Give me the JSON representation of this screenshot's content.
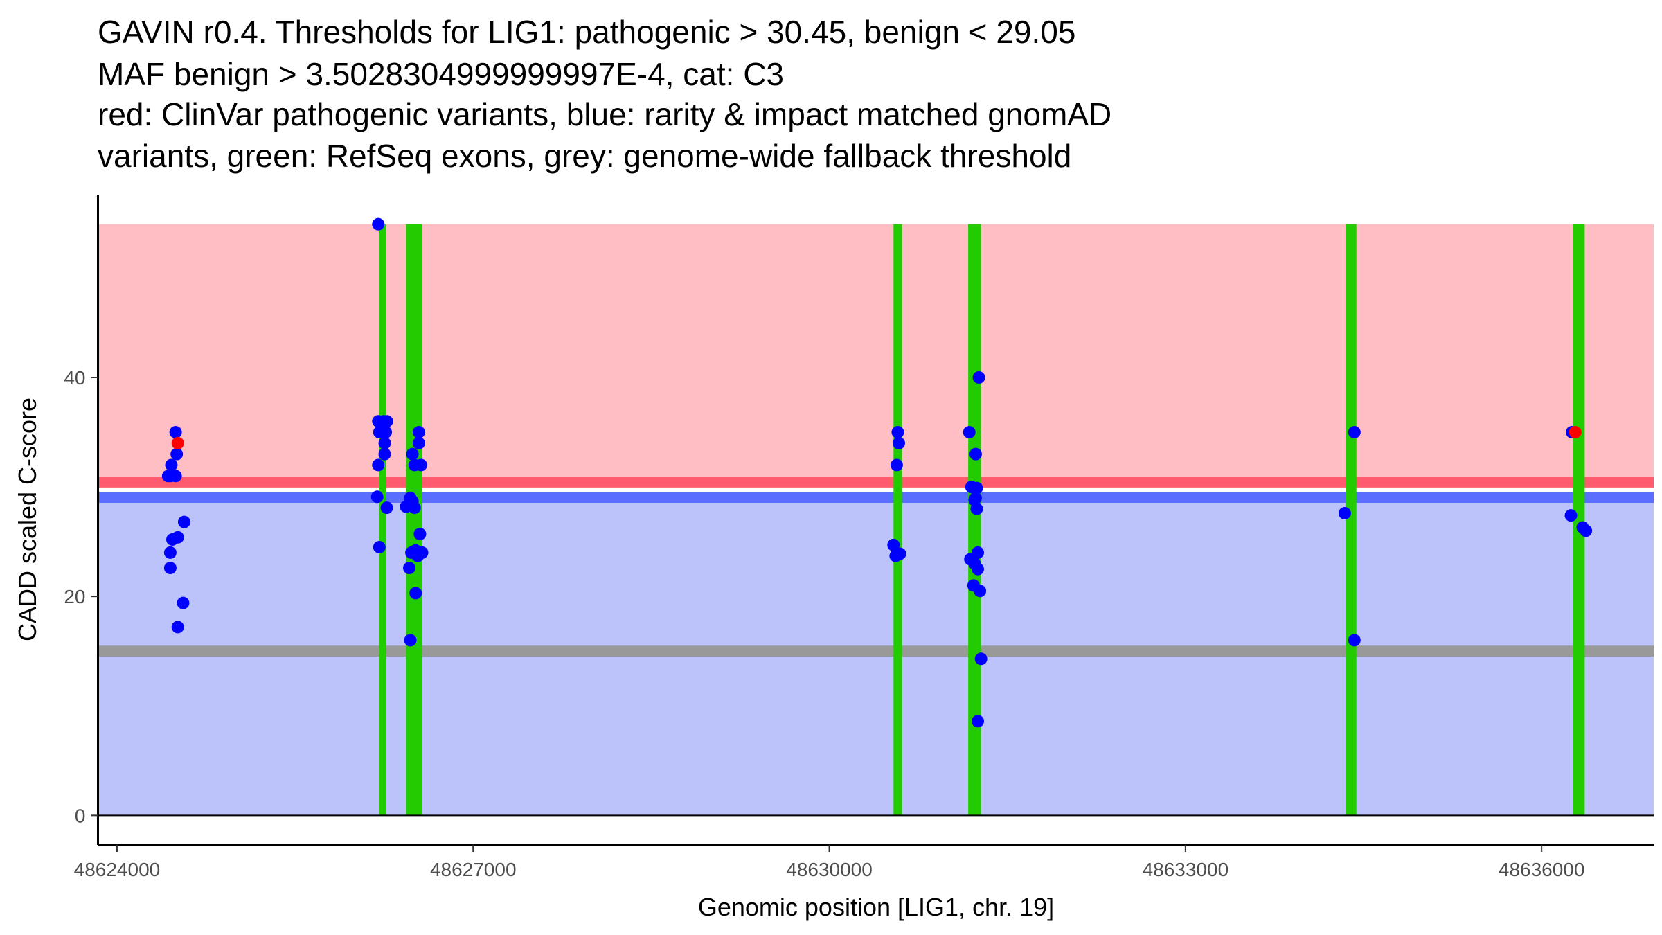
{
  "chart_data": {
    "type": "scatter",
    "title_lines": [
      "GAVIN r0.4. Thresholds for LIG1: pathogenic > 30.45, benign < 29.05",
      "MAF benign > 3.5028304999999997E-4, cat: C3",
      "red: ClinVar pathogenic variants, blue: rarity & impact matched gnomAD",
      "variants, green: RefSeq exons, grey: genome-wide fallback threshold"
    ],
    "xlabel": "Genomic position [LIG1, chr. 19]",
    "ylabel": "CADD scaled C-score",
    "xlim": [
      48623840,
      48636944
    ],
    "ylim": [
      -2.7,
      56.7
    ],
    "xticks": [
      48624000,
      48627000,
      48630000,
      48633000,
      48636000
    ],
    "xtick_labels": [
      "48624000",
      "48627000",
      "48630000",
      "48633000",
      "48636000"
    ],
    "yticks": [
      0,
      20,
      40
    ],
    "ytick_labels": [
      "0",
      "20",
      "40"
    ],
    "grid": false,
    "thresholds": {
      "pathogenic": 30.45,
      "benign": 29.05,
      "fallback": 15,
      "top": 54
    },
    "colors": {
      "pathogenic_area": "#FFBEC4",
      "pathogenic_line": "#FF5A6E",
      "benign_area": "#BCC2FA",
      "benign_line": "#5A6EFF",
      "fallback_line": "#999999",
      "exon": "#22CC00",
      "gnomad": "#0000FF",
      "clinvar": "#FF0000"
    },
    "exons": [
      [
        48626210,
        48626264
      ],
      [
        48626435,
        48626570
      ],
      [
        48630541,
        48630613
      ],
      [
        48631170,
        48631278
      ],
      [
        48634350,
        48634440
      ],
      [
        48636264,
        48636363
      ]
    ],
    "series": [
      {
        "name": "gnomAD (blue)",
        "points": [
          [
            48624494,
            35
          ],
          [
            48624503,
            33
          ],
          [
            48624458,
            32
          ],
          [
            48624431,
            31
          ],
          [
            48624494,
            31
          ],
          [
            48624449,
            31
          ],
          [
            48624566,
            26.8
          ],
          [
            48624512,
            25.4
          ],
          [
            48624467,
            25.2
          ],
          [
            48624449,
            24
          ],
          [
            48624449,
            22.6
          ],
          [
            48624557,
            19.4
          ],
          [
            48624512,
            17.2
          ],
          [
            48626201,
            54
          ],
          [
            48626201,
            36
          ],
          [
            48626246,
            36
          ],
          [
            48626273,
            36
          ],
          [
            48626210,
            35
          ],
          [
            48626264,
            35
          ],
          [
            48626255,
            34
          ],
          [
            48626255,
            33
          ],
          [
            48626201,
            32
          ],
          [
            48626192,
            29.1
          ],
          [
            48626273,
            28.1
          ],
          [
            48626210,
            24.5
          ],
          [
            48626489,
            33
          ],
          [
            48626507,
            32
          ],
          [
            48626561,
            32
          ],
          [
            48626543,
            35
          ],
          [
            48626543,
            34
          ],
          [
            48626471,
            29
          ],
          [
            48626489,
            28.7
          ],
          [
            48626435,
            28.2
          ],
          [
            48626507,
            28.1
          ],
          [
            48626552,
            25.7
          ],
          [
            48626480,
            24
          ],
          [
            48626516,
            24.2
          ],
          [
            48626570,
            24
          ],
          [
            48626534,
            23.7
          ],
          [
            48626462,
            22.6
          ],
          [
            48626516,
            20.3
          ],
          [
            48626471,
            16
          ],
          [
            48630577,
            35
          ],
          [
            48630586,
            34
          ],
          [
            48630568,
            32
          ],
          [
            48630541,
            24.7
          ],
          [
            48630559,
            23.7
          ],
          [
            48630595,
            23.9
          ],
          [
            48631260,
            40
          ],
          [
            48631179,
            35
          ],
          [
            48631233,
            33
          ],
          [
            48631197,
            30
          ],
          [
            48631242,
            29.9
          ],
          [
            48631233,
            29
          ],
          [
            48631224,
            28.8
          ],
          [
            48631242,
            28
          ],
          [
            48631188,
            23.4
          ],
          [
            48631251,
            24
          ],
          [
            48631224,
            23
          ],
          [
            48631251,
            22.5
          ],
          [
            48631215,
            21
          ],
          [
            48631269,
            20.5
          ],
          [
            48631278,
            14.3
          ],
          [
            48631251,
            8.6
          ],
          [
            48634423,
            35
          ],
          [
            48634342,
            27.6
          ],
          [
            48634423,
            16
          ],
          [
            48636256,
            35
          ],
          [
            48636247,
            27.4
          ],
          [
            48636346,
            26.3
          ],
          [
            48636373,
            26
          ]
        ]
      },
      {
        "name": "ClinVar pathogenic (red)",
        "points": [
          [
            48624512,
            34
          ],
          [
            48636283,
            35
          ]
        ]
      }
    ]
  }
}
